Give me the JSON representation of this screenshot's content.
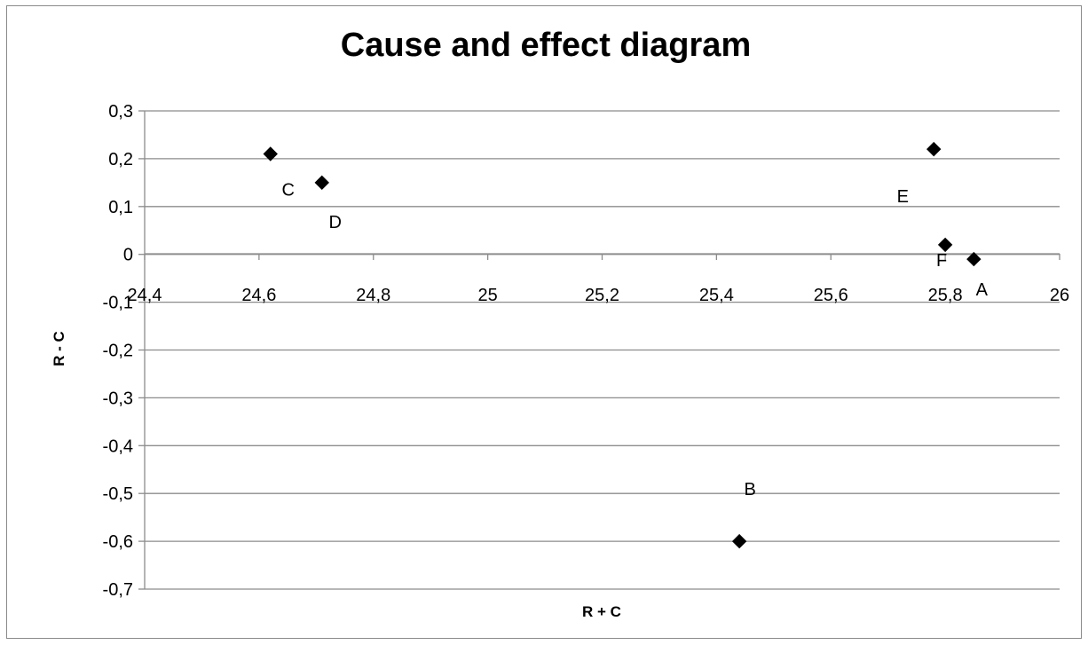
{
  "chart_data": {
    "type": "scatter",
    "title": "Cause and effect diagram",
    "xlabel": "R + C",
    "ylabel": "R - C",
    "xlim": [
      24.4,
      26
    ],
    "ylim": [
      -0.7,
      0.3
    ],
    "x_ticks": [
      "24,4",
      "24,6",
      "24,8",
      "25",
      "25,2",
      "25,4",
      "25,6",
      "25,8",
      "26"
    ],
    "y_ticks": [
      "0,3",
      "0,2",
      "0,1",
      "0",
      "-0,1",
      "-0,2",
      "-0,3",
      "-0,4",
      "-0,5",
      "-0,6",
      "-0,7"
    ],
    "grid": "horizontal",
    "legend": "none",
    "marker": "diamond",
    "marker_color": "#000000",
    "points": [
      {
        "label": "A",
        "x": 25.85,
        "y": -0.01
      },
      {
        "label": "B",
        "x": 25.44,
        "y": -0.6
      },
      {
        "label": "C",
        "x": 24.62,
        "y": 0.21
      },
      {
        "label": "D",
        "x": 24.71,
        "y": 0.15
      },
      {
        "label": "E",
        "x": 25.78,
        "y": 0.22
      },
      {
        "label": "F",
        "x": 25.8,
        "y": 0.02
      }
    ]
  }
}
